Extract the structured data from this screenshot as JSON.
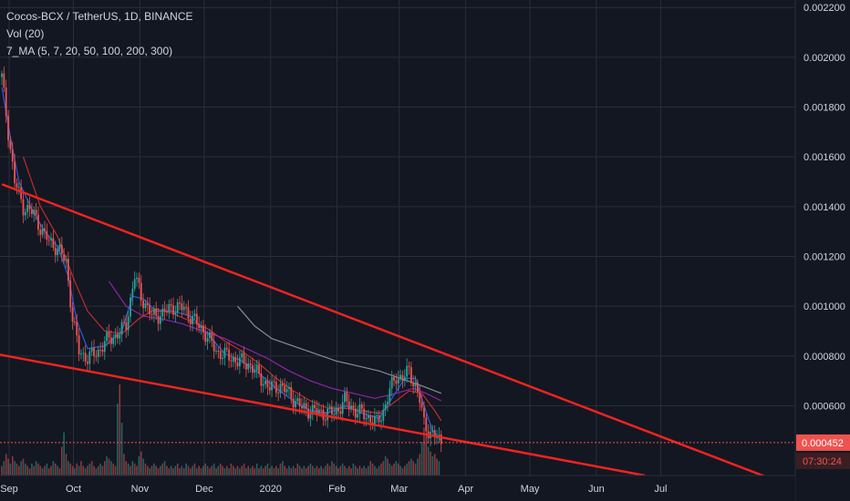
{
  "header": {
    "symbol_line": "Cocos-BCX / TetherUS, 1D, BINANCE",
    "volume_line": "Vol (20)",
    "ma_line": "7_MA (5, 7, 20, 50, 100, 200, 300)"
  },
  "colors": {
    "background": "#131722",
    "grid": "#2a2e39",
    "text": "#d1d4dc",
    "candle_up": "#26a69a",
    "candle_down": "#ef5350",
    "trendline": "#f0241f",
    "ma_fast": "#2962ff",
    "ma_mid": "#d32f2f",
    "ma_slow": "#9c27b0",
    "ma_long": "#9598a1",
    "current_price": "#ef5350"
  },
  "chart_data": {
    "type": "candlestick",
    "price_axis": {
      "ticks": [
        "0.002200",
        "0.002000",
        "0.001800",
        "0.001600",
        "0.001400",
        "0.001200",
        "0.001000",
        "0.000800",
        "0.000600"
      ],
      "range": [
        0.00032,
        0.00223
      ]
    },
    "time_axis": {
      "ticks": [
        "Sep",
        "Oct",
        "Nov",
        "Dec",
        "2020",
        "Feb",
        "Mar",
        "Apr",
        "May",
        "Jun",
        "Jul"
      ]
    },
    "current_price": "0.000452",
    "countdown": "07:30:24",
    "price_series": [
      {
        "x": 0,
        "y": 0.00192
      },
      {
        "x": 3,
        "y": 0.0017
      },
      {
        "x": 6,
        "y": 0.0015
      },
      {
        "x": 10,
        "y": 0.0014
      },
      {
        "x": 15,
        "y": 0.00137
      },
      {
        "x": 20,
        "y": 0.00128
      },
      {
        "x": 25,
        "y": 0.00124
      },
      {
        "x": 30,
        "y": 0.00118
      },
      {
        "x": 33,
        "y": 0.00095
      },
      {
        "x": 36,
        "y": 0.00082
      },
      {
        "x": 40,
        "y": 0.00079
      },
      {
        "x": 45,
        "y": 0.00082
      },
      {
        "x": 50,
        "y": 0.00087
      },
      {
        "x": 55,
        "y": 0.00089
      },
      {
        "x": 58,
        "y": 0.00093
      },
      {
        "x": 62,
        "y": 0.00112
      },
      {
        "x": 65,
        "y": 0.00104
      },
      {
        "x": 70,
        "y": 0.00096
      },
      {
        "x": 75,
        "y": 0.00097
      },
      {
        "x": 80,
        "y": 0.001
      },
      {
        "x": 85,
        "y": 0.00099
      },
      {
        "x": 90,
        "y": 0.00094
      },
      {
        "x": 95,
        "y": 0.00089
      },
      {
        "x": 100,
        "y": 0.00082
      },
      {
        "x": 105,
        "y": 0.0008
      },
      {
        "x": 110,
        "y": 0.00078
      },
      {
        "x": 115,
        "y": 0.00077
      },
      {
        "x": 120,
        "y": 0.00072
      },
      {
        "x": 125,
        "y": 0.00067
      },
      {
        "x": 130,
        "y": 0.00068
      },
      {
        "x": 135,
        "y": 0.00064
      },
      {
        "x": 140,
        "y": 0.00059
      },
      {
        "x": 145,
        "y": 0.00058
      },
      {
        "x": 150,
        "y": 0.00057
      },
      {
        "x": 155,
        "y": 0.00057
      },
      {
        "x": 160,
        "y": 0.00062
      },
      {
        "x": 165,
        "y": 0.00058
      },
      {
        "x": 170,
        "y": 0.00056
      },
      {
        "x": 175,
        "y": 0.00053
      },
      {
        "x": 178,
        "y": 0.00058
      },
      {
        "x": 181,
        "y": 0.00066
      },
      {
        "x": 184,
        "y": 0.00072
      },
      {
        "x": 187,
        "y": 0.00071
      },
      {
        "x": 190,
        "y": 0.00074
      },
      {
        "x": 193,
        "y": 0.00068
      },
      {
        "x": 195,
        "y": 0.00062
      },
      {
        "x": 197,
        "y": 0.00053
      },
      {
        "x": 200,
        "y": 0.00049
      },
      {
        "x": 203,
        "y": 0.00047
      },
      {
        "x": 205,
        "y": 0.000452
      }
    ],
    "volume_bars": [
      4,
      6,
      9,
      7,
      5,
      8,
      6,
      5,
      4,
      6,
      7,
      5,
      4,
      3,
      5,
      4,
      6,
      5,
      4,
      3,
      4,
      5,
      3,
      4,
      6,
      5,
      4,
      3,
      12,
      18,
      9,
      6,
      5,
      4,
      3,
      5,
      4,
      6,
      4,
      3,
      4,
      5,
      6,
      4,
      3,
      4,
      5,
      4,
      6,
      8,
      7,
      6,
      5,
      4,
      30,
      38,
      22,
      9,
      6,
      5,
      4,
      6,
      5,
      4,
      8,
      10,
      7,
      5,
      4,
      3,
      4,
      5,
      4,
      3,
      4,
      5,
      6,
      4,
      3,
      4,
      3,
      4,
      5,
      3,
      4,
      3,
      5,
      4,
      3,
      4,
      5,
      3,
      4,
      3,
      4,
      5,
      4,
      3,
      4,
      5,
      3,
      4,
      5,
      4,
      3,
      4,
      3,
      5,
      4,
      3,
      4,
      3,
      4,
      5,
      3,
      4,
      3,
      4,
      3,
      5,
      3,
      4,
      3,
      4,
      5,
      3,
      4,
      3,
      4,
      3,
      5,
      6,
      4,
      3,
      4,
      3,
      4,
      3,
      5,
      4,
      3,
      4,
      3,
      4,
      5,
      4,
      3,
      4,
      3,
      4,
      3,
      4,
      5,
      4,
      6,
      5,
      4,
      3,
      4,
      5,
      4,
      3,
      4,
      3,
      5,
      4,
      3,
      4,
      3,
      4,
      3,
      4,
      6,
      5,
      4,
      3,
      4,
      5,
      6,
      8,
      7,
      5,
      4,
      5,
      6,
      5,
      4,
      3,
      4,
      5,
      6,
      7,
      6,
      5,
      7,
      9,
      14,
      20,
      16,
      12,
      10,
      8,
      9,
      7,
      6
    ],
    "moving_averages": [
      {
        "points": [
          [
            0,
            0.00188
          ],
          [
            4,
            0.00168
          ],
          [
            8,
            0.0015
          ],
          [
            14,
            0.00139
          ],
          [
            20,
            0.0013
          ],
          [
            26,
            0.00124
          ],
          [
            31,
            0.00112
          ],
          [
            35,
            0.00094
          ],
          [
            40,
            0.00083
          ],
          [
            48,
            0.00084
          ],
          [
            56,
            0.0009
          ],
          [
            61,
            0.00104
          ],
          [
            66,
            0.00103
          ],
          [
            72,
            0.00098
          ],
          [
            80,
            0.00098
          ],
          [
            88,
            0.00096
          ],
          [
            96,
            0.00089
          ],
          [
            104,
            0.00081
          ],
          [
            112,
            0.00078
          ],
          [
            120,
            0.00073
          ],
          [
            128,
            0.00067
          ],
          [
            136,
            0.00062
          ],
          [
            144,
            0.00058
          ],
          [
            152,
            0.00057
          ],
          [
            160,
            0.0006
          ],
          [
            168,
            0.00057
          ],
          [
            176,
            0.00055
          ],
          [
            182,
            0.00063
          ],
          [
            188,
            0.00071
          ],
          [
            193,
            0.00071
          ],
          [
            197,
            0.0006
          ],
          [
            201,
            0.0005
          ],
          [
            205,
            0.00046
          ]
        ]
      },
      {
        "points": [
          [
            10,
            0.0016
          ],
          [
            18,
            0.0014
          ],
          [
            26,
            0.00128
          ],
          [
            34,
            0.0011
          ],
          [
            40,
            0.00098
          ],
          [
            48,
            0.0009
          ],
          [
            56,
            0.00089
          ],
          [
            64,
            0.00095
          ],
          [
            72,
            0.00099
          ],
          [
            80,
            0.00097
          ],
          [
            88,
            0.00094
          ],
          [
            96,
            0.00091
          ],
          [
            104,
            0.00086
          ],
          [
            112,
            0.00082
          ],
          [
            120,
            0.00077
          ],
          [
            128,
            0.00071
          ],
          [
            136,
            0.00066
          ],
          [
            144,
            0.00062
          ],
          [
            152,
            0.00059
          ],
          [
            160,
            0.00059
          ],
          [
            168,
            0.00058
          ],
          [
            176,
            0.00057
          ],
          [
            184,
            0.00062
          ],
          [
            190,
            0.00066
          ],
          [
            196,
            0.00065
          ],
          [
            202,
            0.00058
          ],
          [
            205,
            0.00054
          ]
        ]
      },
      {
        "points": [
          [
            50,
            0.0011
          ],
          [
            58,
            0.001
          ],
          [
            66,
            0.00096
          ],
          [
            74,
            0.00095
          ],
          [
            84,
            0.00093
          ],
          [
            94,
            0.0009
          ],
          [
            104,
            0.00087
          ],
          [
            114,
            0.00083
          ],
          [
            124,
            0.00079
          ],
          [
            134,
            0.00074
          ],
          [
            144,
            0.0007
          ],
          [
            154,
            0.00067
          ],
          [
            164,
            0.00065
          ],
          [
            174,
            0.00063
          ],
          [
            184,
            0.00065
          ],
          [
            192,
            0.00067
          ],
          [
            198,
            0.00065
          ],
          [
            205,
            0.00062
          ]
        ]
      },
      {
        "points": [
          [
            110,
            0.001
          ],
          [
            118,
            0.00092
          ],
          [
            126,
            0.00087
          ],
          [
            136,
            0.00084
          ],
          [
            146,
            0.00081
          ],
          [
            156,
            0.00078
          ],
          [
            166,
            0.00076
          ],
          [
            176,
            0.00074
          ],
          [
            186,
            0.00071
          ],
          [
            196,
            0.00068
          ],
          [
            205,
            0.00065
          ]
        ]
      }
    ],
    "trendlines": [
      {
        "from": [
          0,
          0.00149
        ],
        "to": [
          361,
          0.0003
        ]
      },
      {
        "from": [
          -2,
          0.000807
        ],
        "to": [
          300,
          0.00032
        ]
      }
    ]
  }
}
